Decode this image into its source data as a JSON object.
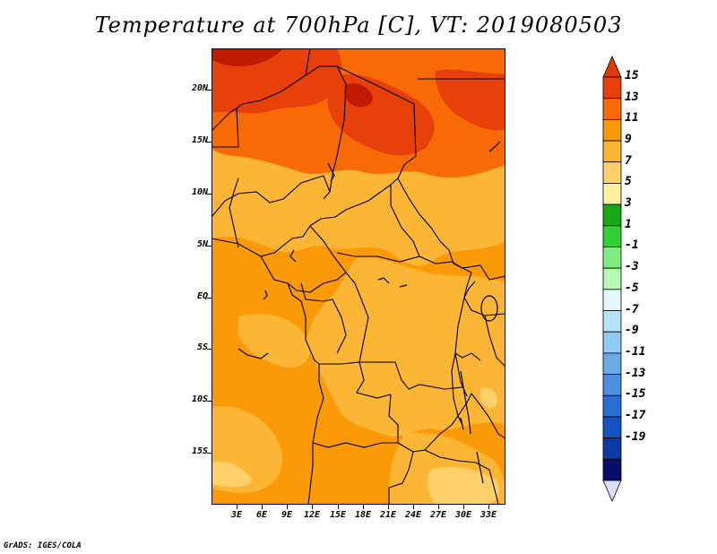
{
  "title": "Temperature at 700hPa [C], VT: 2019080503",
  "footer": "GrADS: IGES/COLA",
  "map": {
    "variable": "Temperature at 700hPa",
    "units": "C",
    "valid_time": "2019080503",
    "lon_range": [
      0,
      35
    ],
    "lat_range": [
      -20,
      24
    ],
    "lat_ticks": [
      {
        "label": "20N",
        "lat": 20
      },
      {
        "label": "15N",
        "lat": 15
      },
      {
        "label": "10N",
        "lat": 10
      },
      {
        "label": "5N",
        "lat": 5
      },
      {
        "label": "EQ",
        "lat": 0
      },
      {
        "label": "5S",
        "lat": -5
      },
      {
        "label": "10S",
        "lat": -10
      },
      {
        "label": "15S",
        "lat": -15
      }
    ],
    "lon_ticks": [
      {
        "label": "3E",
        "lon": 3
      },
      {
        "label": "6E",
        "lon": 6
      },
      {
        "label": "9E",
        "lon": 9
      },
      {
        "label": "12E",
        "lon": 12
      },
      {
        "label": "15E",
        "lon": 15
      },
      {
        "label": "18E",
        "lon": 18
      },
      {
        "label": "21E",
        "lon": 21
      },
      {
        "label": "24E",
        "lon": 24
      },
      {
        "label": "27E",
        "lon": 27
      },
      {
        "label": "30E",
        "lon": 30
      },
      {
        "label": "33E",
        "lon": 33
      }
    ]
  },
  "colorbar": {
    "labels": [
      "15",
      "13",
      "11",
      "9",
      "7",
      "5",
      "3",
      "1",
      "-1",
      "-3",
      "-5",
      "-7",
      "-9",
      "-11",
      "-13",
      "-15",
      "-17",
      "-19"
    ],
    "colors": [
      "#c01a00",
      "#e8400a",
      "#f86a05",
      "#fb9a06",
      "#fdb535",
      "#fed069",
      "#fef2a0",
      "#17aa17",
      "#34cf34",
      "#80ec80",
      "#b6f8b6",
      "#e2f8fa",
      "#b5e3f6",
      "#8fcaf0",
      "#6aabe6",
      "#4b8fde",
      "#2a6ed4",
      "#1553c0",
      "#0c3aa4",
      "#050e6a",
      "#dadcf8"
    ],
    "top_arrow_color": "#e03808",
    "bottom_arrow_color": "#dadcf8"
  }
}
